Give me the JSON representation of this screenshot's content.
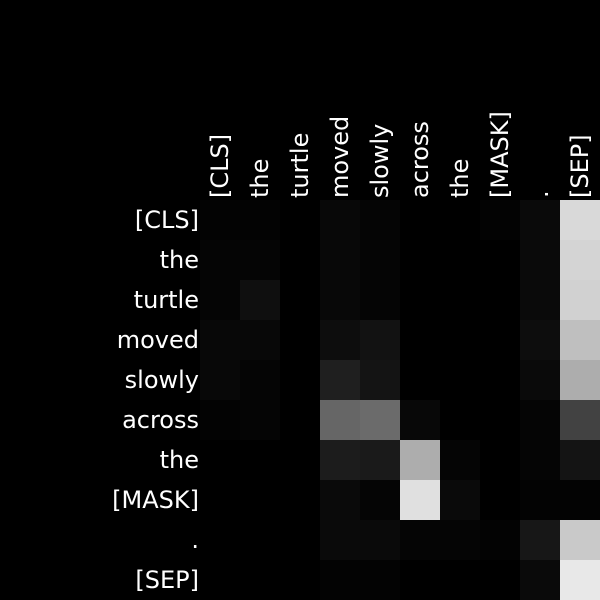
{
  "chart_data": {
    "type": "heatmap",
    "x_labels": [
      "[CLS]",
      "the",
      "turtle",
      "moved",
      "slowly",
      "across",
      "the",
      "[MASK]",
      ".",
      "[SEP]"
    ],
    "y_labels": [
      "[CLS]",
      "the",
      "turtle",
      "moved",
      "slowly",
      "across",
      "the",
      "[MASK]",
      ".",
      "[SEP]"
    ],
    "values": [
      [
        0.01,
        0.01,
        0.0,
        0.03,
        0.02,
        0.0,
        0.0,
        0.01,
        0.04,
        0.85
      ],
      [
        0.02,
        0.02,
        0.0,
        0.03,
        0.02,
        0.0,
        0.0,
        0.0,
        0.04,
        0.83
      ],
      [
        0.02,
        0.06,
        0.0,
        0.03,
        0.02,
        0.0,
        0.0,
        0.0,
        0.04,
        0.82
      ],
      [
        0.03,
        0.03,
        0.0,
        0.05,
        0.07,
        0.0,
        0.0,
        0.0,
        0.05,
        0.75
      ],
      [
        0.03,
        0.02,
        0.0,
        0.12,
        0.08,
        0.0,
        0.0,
        0.0,
        0.04,
        0.68
      ],
      [
        0.01,
        0.02,
        0.0,
        0.4,
        0.42,
        0.03,
        0.0,
        0.0,
        0.02,
        0.26
      ],
      [
        0.0,
        0.0,
        0.0,
        0.11,
        0.1,
        0.68,
        0.02,
        0.0,
        0.02,
        0.08
      ],
      [
        0.0,
        0.0,
        0.0,
        0.04,
        0.02,
        0.88,
        0.04,
        0.0,
        0.01,
        0.01
      ],
      [
        0.0,
        0.0,
        0.0,
        0.04,
        0.04,
        0.02,
        0.02,
        0.01,
        0.09,
        0.79
      ],
      [
        0.0,
        0.0,
        0.0,
        0.01,
        0.01,
        0.0,
        0.0,
        0.0,
        0.04,
        0.91
      ]
    ],
    "colormap": "gray",
    "background": "#000000",
    "text_color": "#ffffff",
    "xlabel": "",
    "ylabel": "",
    "title": ""
  }
}
